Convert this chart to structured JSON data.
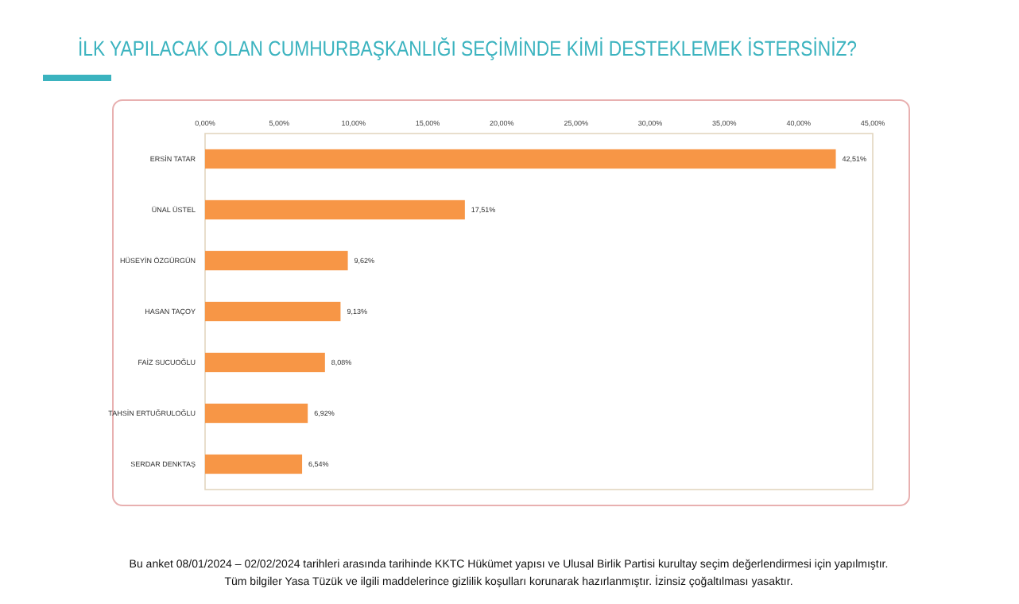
{
  "chart_data": {
    "type": "bar",
    "orientation": "horizontal",
    "title": "İLK YAPILACAK OLAN CUMHURBAŞKANLIĞI SEÇİMİNDE KİMİ DESTEKLEMEK İSTERSİNİZ?",
    "categories": [
      "ERSİN TATAR",
      "ÜNAL ÜSTEL",
      "HÜSEYİN ÖZGÜRGÜN",
      "HASAN TAÇOY",
      "FAİZ SUCUOĞLU",
      "TAHSİN ERTUĞRULOĞLU",
      "SERDAR DENKTAŞ"
    ],
    "values": [
      42.51,
      17.51,
      9.62,
      9.13,
      8.08,
      6.92,
      6.54
    ],
    "value_labels": [
      "42,51%",
      "17,51%",
      "9,62%",
      "9,13%",
      "8,08%",
      "6,92%",
      "6,54%"
    ],
    "color": "#f79646",
    "xlim": [
      0,
      45
    ],
    "xticks": [
      {
        "value": 0,
        "label": "0,00%"
      },
      {
        "value": 5,
        "label": "5,00%"
      },
      {
        "value": 10,
        "label": "10,00%"
      },
      {
        "value": 15,
        "label": "15,00%"
      },
      {
        "value": 20,
        "label": "20,00%"
      },
      {
        "value": 25,
        "label": "25,00%"
      },
      {
        "value": 30,
        "label": "30,00%"
      },
      {
        "value": 35,
        "label": "35,00%"
      },
      {
        "value": 40,
        "label": "40,00%"
      },
      {
        "value": 45,
        "label": "45,00%"
      }
    ],
    "grid": false,
    "annotations": [
      "Bu anket 08/01/2024 – 02/02/2024 tarihleri arasında tarihinde KKTC Hükümet yapısı ve Ulusal Birlik Partisi kurultay seçim değerlendirmesi için yapılmıştır.",
      "Tüm bilgiler Yasa Tüzük ve ilgili maddelerince gizlilik koşulları korunarak hazırlanmıştır.  İzinsiz çoğaltılması yasaktır."
    ]
  }
}
